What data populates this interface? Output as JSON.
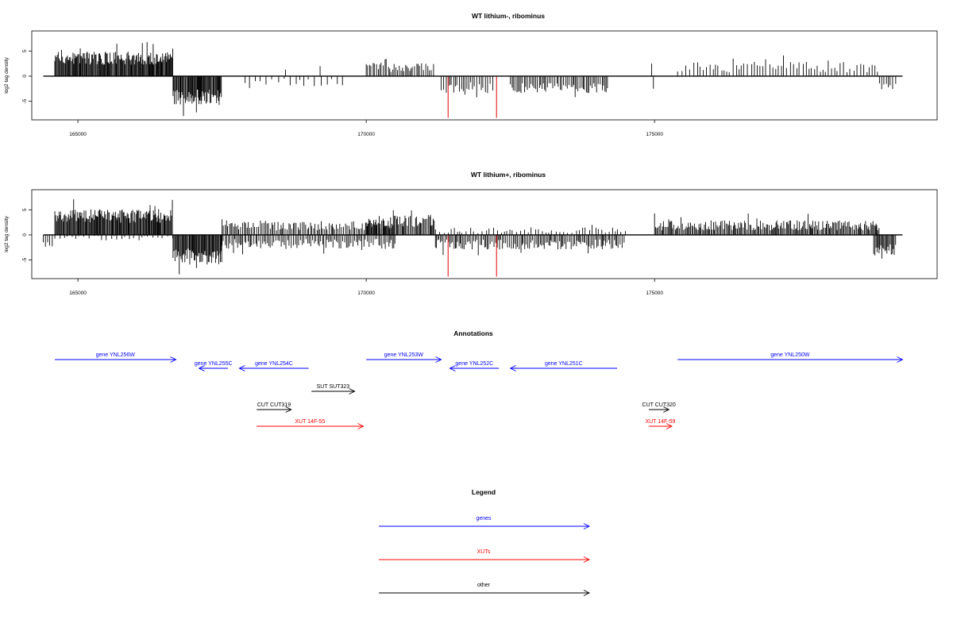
{
  "chart_data": [
    {
      "type": "bar",
      "title": "WT lithium-, ribominus",
      "ylabel": "log2 tag density",
      "xlim": [
        164200,
        179900
      ],
      "ylim": [
        -8.7,
        9
      ],
      "x_ticks": [
        165000,
        170000,
        175000
      ],
      "y_ticks": [
        5,
        0,
        -5
      ],
      "baseline": {
        "from": 164400,
        "to": 179300,
        "value": 0
      },
      "colors": {
        "bars": "#000000",
        "highlight": "#e41a1c"
      },
      "segments": [
        {
          "from": 164600,
          "to": 166650,
          "sign": 1,
          "level": 3.6,
          "peak": 6.8,
          "step": 14,
          "jitter": 1.3
        },
        {
          "from": 166650,
          "to": 167500,
          "sign": -1,
          "level": 4.2,
          "peak": 8.2,
          "step": 14,
          "jitter": 1.6
        },
        {
          "from": 167900,
          "to": 169600,
          "sign": -1,
          "level": 1.2,
          "peak": 2.5,
          "step": 90,
          "jitter": 0.8
        },
        {
          "from": 170000,
          "to": 171200,
          "sign": 1,
          "level": 1.8,
          "peak": 3.6,
          "step": 30,
          "jitter": 1.0
        },
        {
          "from": 171300,
          "to": 172200,
          "sign": -1,
          "level": 2.3,
          "peak": 4.5,
          "step": 35,
          "jitter": 1.1
        },
        {
          "from": 172500,
          "to": 174200,
          "sign": -1,
          "level": 2.4,
          "peak": 4.3,
          "step": 28,
          "jitter": 1.0
        },
        {
          "from": 175400,
          "to": 178900,
          "sign": 1,
          "level": 1.8,
          "peak": 4.5,
          "step": 55,
          "jitter": 1.1
        },
        {
          "from": 178900,
          "to": 179200,
          "sign": -1,
          "level": 2.0,
          "peak": 3.5,
          "step": 40,
          "jitter": 0.8
        }
      ],
      "bars": [
        {
          "x": 168600,
          "y": 1.3
        },
        {
          "x": 169200,
          "y": 2.0
        },
        {
          "x": 174950,
          "y": 2.5
        },
        {
          "x": 174980,
          "y": -2.5
        }
      ],
      "highlight_bars": [
        {
          "x": 171420,
          "y": -8.3
        },
        {
          "x": 172260,
          "y": -8.3
        }
      ]
    },
    {
      "type": "bar",
      "title": "WT lithium+, ribominus",
      "ylabel": "log2 tag density",
      "xlim": [
        164200,
        179900
      ],
      "ylim": [
        -8.7,
        9
      ],
      "x_ticks": [
        165000,
        170000,
        175000
      ],
      "y_ticks": [
        5,
        0,
        -5
      ],
      "baseline": {
        "from": 164400,
        "to": 179300,
        "value": 0
      },
      "colors": {
        "bars": "#000000",
        "highlight": "#e41a1c"
      },
      "segments": [
        {
          "from": 164400,
          "to": 164600,
          "sign": -1,
          "level": 2.0,
          "peak": 3.2,
          "step": 50,
          "jitter": 0.8
        },
        {
          "from": 164600,
          "to": 166650,
          "sign": 1,
          "level": 3.8,
          "peak": 8.3,
          "step": 14,
          "jitter": 1.4
        },
        {
          "from": 164600,
          "to": 166650,
          "sign": -1,
          "level": 0.6,
          "peak": 1.5,
          "step": 70,
          "jitter": 0.5
        },
        {
          "from": 166650,
          "to": 167500,
          "sign": -1,
          "level": 4.3,
          "peak": 8.2,
          "step": 14,
          "jitter": 1.6
        },
        {
          "from": 167500,
          "to": 170500,
          "sign": 1,
          "level": 1.9,
          "peak": 4.3,
          "step": 28,
          "jitter": 1.0
        },
        {
          "from": 167500,
          "to": 170500,
          "sign": -1,
          "level": 1.8,
          "peak": 4.0,
          "step": 28,
          "jitter": 1.0
        },
        {
          "from": 170000,
          "to": 171200,
          "sign": 1,
          "level": 2.8,
          "peak": 5.9,
          "step": 20,
          "jitter": 1.2
        },
        {
          "from": 171200,
          "to": 174500,
          "sign": -1,
          "level": 1.9,
          "peak": 4.3,
          "step": 26,
          "jitter": 1.0
        },
        {
          "from": 171200,
          "to": 174500,
          "sign": 1,
          "level": 0.9,
          "peak": 2.2,
          "step": 60,
          "jitter": 0.6
        },
        {
          "from": 175000,
          "to": 178900,
          "sign": 1,
          "level": 1.9,
          "peak": 4.4,
          "step": 20,
          "jitter": 1.0
        },
        {
          "from": 178800,
          "to": 179200,
          "sign": -1,
          "level": 3.0,
          "peak": 5.6,
          "step": 18,
          "jitter": 1.2
        }
      ],
      "bars": [],
      "highlight_bars": [
        {
          "x": 171420,
          "y": -8.3
        },
        {
          "x": 172260,
          "y": -8.3
        }
      ]
    }
  ],
  "annotations": {
    "title": "Annotations",
    "xlim": [
      164200,
      179900
    ],
    "colors": {
      "genes": "#0000ff",
      "XUTs": "#ff0000",
      "other": "#000000"
    },
    "features": [
      {
        "label": "gene YNL256W",
        "from": 164600,
        "to": 166700,
        "strand": "+",
        "kind": "genes"
      },
      {
        "label": "gene YNL255C",
        "from": 167100,
        "to": 167600,
        "strand": "-",
        "kind": "genes"
      },
      {
        "label": "gene YNL254C",
        "from": 167800,
        "to": 169000,
        "strand": "-",
        "kind": "genes"
      },
      {
        "label": "gene YNL253W",
        "from": 170000,
        "to": 171300,
        "strand": "+",
        "kind": "genes"
      },
      {
        "label": "gene YNL252C",
        "from": 171450,
        "to": 172300,
        "strand": "-",
        "kind": "genes"
      },
      {
        "label": "gene YNL251C",
        "from": 172500,
        "to": 174350,
        "strand": "-",
        "kind": "genes"
      },
      {
        "label": "gene YNL250W",
        "from": 175400,
        "to": 179300,
        "strand": "+",
        "kind": "genes"
      },
      {
        "label": "SUT SUT323",
        "from": 169050,
        "to": 169800,
        "strand": "+",
        "kind": "other"
      },
      {
        "label": "CUT CUT319",
        "from": 168100,
        "to": 168700,
        "strand": "+",
        "kind": "other"
      },
      {
        "label": "CUT CUT320",
        "from": 174900,
        "to": 175250,
        "strand": "+",
        "kind": "other"
      },
      {
        "label": "XUT 14F-55",
        "from": 168100,
        "to": 169950,
        "strand": "+",
        "kind": "XUTs"
      },
      {
        "label": "XUT 14F-59",
        "from": 174900,
        "to": 175300,
        "strand": "+",
        "kind": "XUTs"
      }
    ]
  },
  "legend": {
    "title": "Legend",
    "entries": [
      {
        "label": "genes",
        "kind": "genes"
      },
      {
        "label": "XUTs",
        "kind": "XUTs"
      },
      {
        "label": "other",
        "kind": "other"
      }
    ]
  }
}
